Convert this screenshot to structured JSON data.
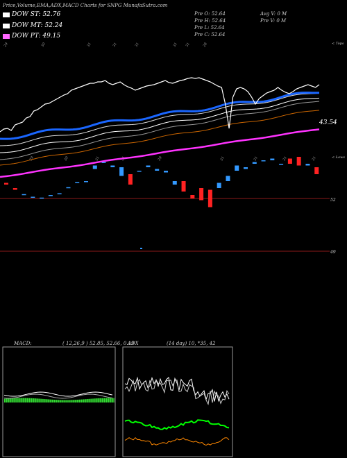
{
  "header": {
    "title": "Price,Volume,EMA,ADX,MACD Charts for SNPG MunafaSutra.com"
  },
  "legend": [
    {
      "label": "DOW ST: 52.76",
      "color": "#ffffff"
    },
    {
      "label": "DOW MT: 52.24",
      "color": "#ffffff"
    },
    {
      "label": "DOW PT: 49.15",
      "color": "#ff66ff"
    }
  ],
  "price_info": {
    "open": "Pre  O: 52.64",
    "high": "Pre  H: 52.64",
    "low": "Pre  L: 52.64",
    "close": "Pre  C: 52.64",
    "avg_vol": "Avg V: 0  M",
    "pre_vol": "Pre  V: 0  M"
  },
  "colors": {
    "up": "#3399ff",
    "down": "#ff2222",
    "ema_fast": "#1a66ff",
    "ema_slow": "#cc6600",
    "dow_pt": "#ff33ff",
    "macd_fill": "#33dd33",
    "adx_green": "#00ff00",
    "adx_orange": "#ff8800"
  },
  "upper_axis": {
    "top_label": "< Tops",
    "low_label": "< Lows",
    "value_label": "43.54",
    "top_dates": [
      "29",
      "30",
      "31",
      "31",
      "31",
      "31",
      "31",
      "28"
    ],
    "low_dates": [
      "29",
      "30",
      "31",
      "31",
      "29",
      "31",
      "31",
      "31",
      "31"
    ]
  },
  "lower_axis": {
    "label_52": "52",
    "label_49": "49"
  },
  "macd": {
    "title": "MACD:",
    "params": "( 12,26,9 ) 52.85, 52.66, 0.19"
  },
  "adx": {
    "title": "ADX",
    "params": "(14  day) 10, *35, 42"
  },
  "chart_data": {
    "type": "line",
    "title": "Price,Volume,EMA,ADX,MACD Charts for SNPG MunafaSutra.com",
    "series": [
      {
        "name": "DOW ST",
        "values": [
          52.76
        ]
      },
      {
        "name": "DOW MT",
        "values": [
          52.24
        ]
      },
      {
        "name": "DOW PT",
        "values": [
          49.15
        ]
      }
    ],
    "candles": [
      {
        "o": 52.9,
        "c": 52.8
      },
      {
        "o": 52.6,
        "c": 52.5
      },
      {
        "o": 52.2,
        "c": 52.25
      },
      {
        "o": 52.05,
        "c": 52.1
      },
      {
        "o": 52.0,
        "c": 52.05
      },
      {
        "o": 52.15,
        "c": 52.2
      },
      {
        "o": 52.25,
        "c": 52.3
      },
      {
        "o": 52.6,
        "c": 52.65
      },
      {
        "o": 52.9,
        "c": 52.95
      },
      {
        "o": 52.95,
        "c": 53.0
      },
      {
        "o": 53.7,
        "c": 53.9
      },
      {
        "o": 54.1,
        "c": 54.1
      },
      {
        "o": 53.8,
        "c": 53.9
      },
      {
        "o": 53.3,
        "c": 53.8
      },
      {
        "o": 53.4,
        "c": 52.8
      },
      {
        "o": 53.6,
        "c": 53.6
      },
      {
        "o": 53.8,
        "c": 53.9
      },
      {
        "o": 53.6,
        "c": 53.7
      },
      {
        "o": 53.5,
        "c": 53.6
      },
      {
        "o": 52.8,
        "c": 53.0
      },
      {
        "o": 53.0,
        "c": 52.4
      },
      {
        "o": 52.2,
        "c": 52.0
      },
      {
        "o": 52.6,
        "c": 51.9
      },
      {
        "o": 52.5,
        "c": 51.5
      },
      {
        "o": 52.6,
        "c": 52.9
      },
      {
        "o": 53.0,
        "c": 53.3
      },
      {
        "o": 53.6,
        "c": 53.9
      },
      {
        "o": 53.7,
        "c": 53.8
      },
      {
        "o": 54.0,
        "c": 54.1
      },
      {
        "o": 54.2,
        "c": 54.2
      },
      {
        "o": 54.2,
        "c": 54.3
      },
      {
        "o": 54.0,
        "c": 54.0
      },
      {
        "o": 54.3,
        "c": 54.0
      },
      {
        "o": 54.4,
        "c": 53.9
      },
      {
        "o": 53.9,
        "c": 54.0
      },
      {
        "o": 53.8,
        "c": 53.4
      }
    ]
  }
}
